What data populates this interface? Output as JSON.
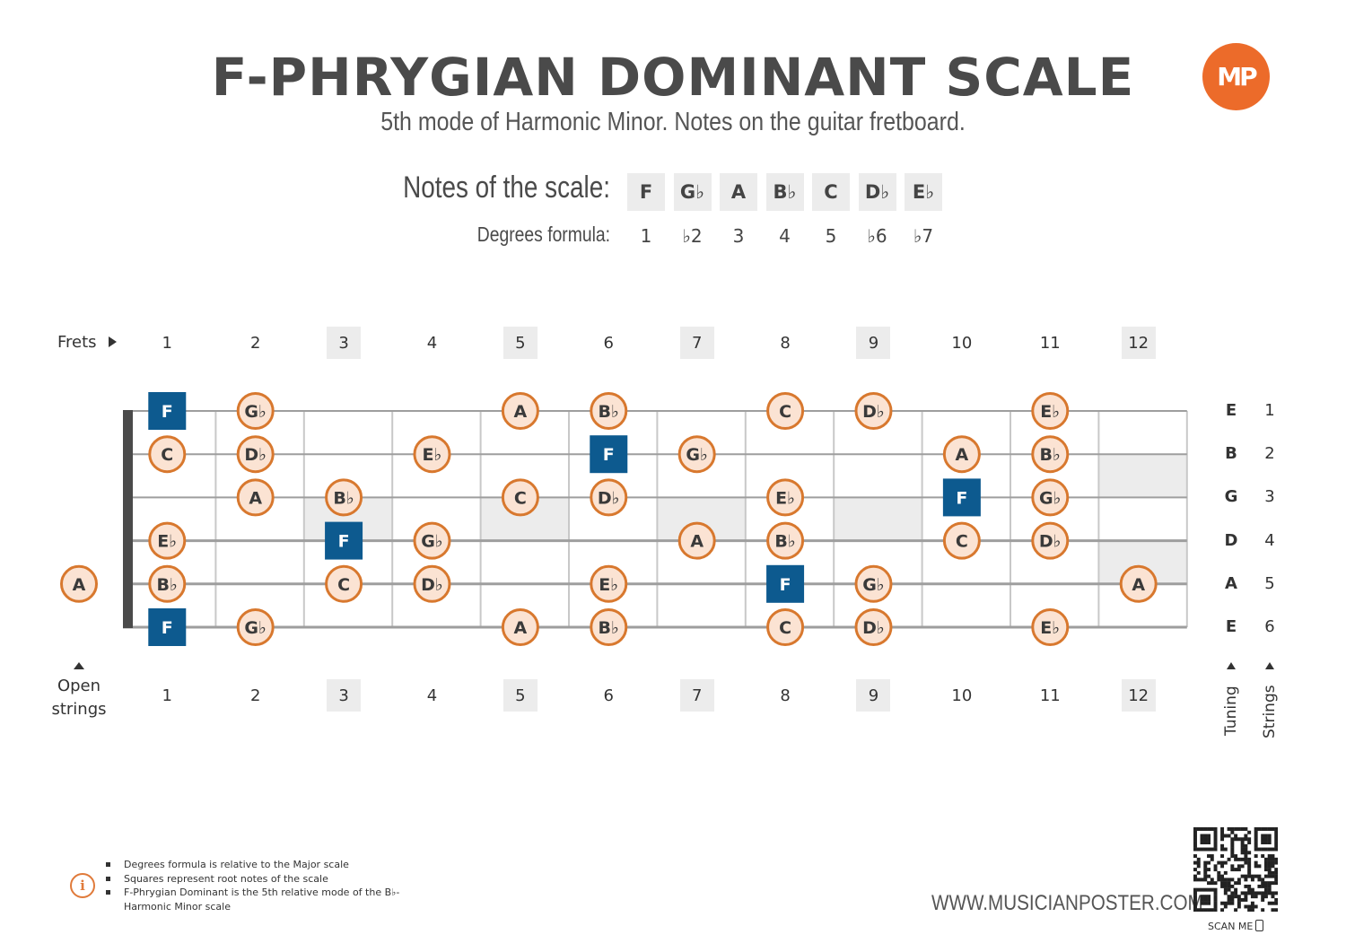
{
  "title": "F-PHRYGIAN DOMINANT SCALE",
  "subtitle": "5th mode of Harmonic Minor. Notes on the guitar fretboard.",
  "logo_text": "MP",
  "notes_label": "Notes of the scale:",
  "degrees_label": "Degrees formula:",
  "scale_notes": [
    "F",
    "G♭",
    "A",
    "B♭",
    "C",
    "D♭",
    "E♭"
  ],
  "degrees": [
    "1",
    "♭2",
    "3",
    "4",
    "5",
    "♭6",
    "♭7"
  ],
  "frets_label": "Frets",
  "open_strings_label": [
    "Open",
    "strings"
  ],
  "fret_numbers": [
    "1",
    "2",
    "3",
    "4",
    "5",
    "6",
    "7",
    "8",
    "9",
    "10",
    "11",
    "12"
  ],
  "highlighted_frets": [
    3,
    5,
    7,
    9,
    12
  ],
  "tuning": [
    "E",
    "B",
    "G",
    "D",
    "A",
    "E"
  ],
  "string_numbers": [
    "1",
    "2",
    "3",
    "4",
    "5",
    "6"
  ],
  "tuning_label": "Tuning",
  "strings_label": "Strings",
  "colors": {
    "note_fill": "#fbe3d3",
    "note_border": "#d8782e",
    "root_fill": "#0d5a8f",
    "fret_line": "#c8c8c8",
    "string_line": "#9e9e9e",
    "nut": "#4a4a4a",
    "highlight": "#ececec"
  },
  "fretboard_notes": [
    {
      "string": 1,
      "fret": 1,
      "note": "F",
      "root": true
    },
    {
      "string": 1,
      "fret": 2,
      "note": "G♭",
      "root": false
    },
    {
      "string": 1,
      "fret": 5,
      "note": "A",
      "root": false
    },
    {
      "string": 1,
      "fret": 6,
      "note": "B♭",
      "root": false
    },
    {
      "string": 1,
      "fret": 8,
      "note": "C",
      "root": false
    },
    {
      "string": 1,
      "fret": 9,
      "note": "D♭",
      "root": false
    },
    {
      "string": 1,
      "fret": 11,
      "note": "E♭",
      "root": false
    },
    {
      "string": 2,
      "fret": 1,
      "note": "C",
      "root": false
    },
    {
      "string": 2,
      "fret": 2,
      "note": "D♭",
      "root": false
    },
    {
      "string": 2,
      "fret": 4,
      "note": "E♭",
      "root": false
    },
    {
      "string": 2,
      "fret": 6,
      "note": "F",
      "root": true
    },
    {
      "string": 2,
      "fret": 7,
      "note": "G♭",
      "root": false
    },
    {
      "string": 2,
      "fret": 10,
      "note": "A",
      "root": false
    },
    {
      "string": 2,
      "fret": 11,
      "note": "B♭",
      "root": false
    },
    {
      "string": 3,
      "fret": 2,
      "note": "A",
      "root": false
    },
    {
      "string": 3,
      "fret": 3,
      "note": "B♭",
      "root": false
    },
    {
      "string": 3,
      "fret": 5,
      "note": "C",
      "root": false
    },
    {
      "string": 3,
      "fret": 6,
      "note": "D♭",
      "root": false
    },
    {
      "string": 3,
      "fret": 8,
      "note": "E♭",
      "root": false
    },
    {
      "string": 3,
      "fret": 10,
      "note": "F",
      "root": true
    },
    {
      "string": 3,
      "fret": 11,
      "note": "G♭",
      "root": false
    },
    {
      "string": 4,
      "fret": 1,
      "note": "E♭",
      "root": false
    },
    {
      "string": 4,
      "fret": 3,
      "note": "F",
      "root": true
    },
    {
      "string": 4,
      "fret": 4,
      "note": "G♭",
      "root": false
    },
    {
      "string": 4,
      "fret": 7,
      "note": "A",
      "root": false
    },
    {
      "string": 4,
      "fret": 8,
      "note": "B♭",
      "root": false
    },
    {
      "string": 4,
      "fret": 10,
      "note": "C",
      "root": false
    },
    {
      "string": 4,
      "fret": 11,
      "note": "D♭",
      "root": false
    },
    {
      "string": 5,
      "fret": 0,
      "note": "A",
      "root": false
    },
    {
      "string": 5,
      "fret": 1,
      "note": "B♭",
      "root": false
    },
    {
      "string": 5,
      "fret": 3,
      "note": "C",
      "root": false
    },
    {
      "string": 5,
      "fret": 4,
      "note": "D♭",
      "root": false
    },
    {
      "string": 5,
      "fret": 6,
      "note": "E♭",
      "root": false
    },
    {
      "string": 5,
      "fret": 8,
      "note": "F",
      "root": true
    },
    {
      "string": 5,
      "fret": 9,
      "note": "G♭",
      "root": false
    },
    {
      "string": 5,
      "fret": 12,
      "note": "A",
      "root": false
    },
    {
      "string": 6,
      "fret": 1,
      "note": "F",
      "root": true
    },
    {
      "string": 6,
      "fret": 2,
      "note": "G♭",
      "root": false
    },
    {
      "string": 6,
      "fret": 5,
      "note": "A",
      "root": false
    },
    {
      "string": 6,
      "fret": 6,
      "note": "B♭",
      "root": false
    },
    {
      "string": 6,
      "fret": 8,
      "note": "C",
      "root": false
    },
    {
      "string": 6,
      "fret": 9,
      "note": "D♭",
      "root": false
    },
    {
      "string": 6,
      "fret": 11,
      "note": "E♭",
      "root": false
    }
  ],
  "info_notes": [
    "Degrees formula is relative to the Major scale",
    "Squares represent root notes of the scale",
    "F-Phrygian Dominant is the 5th relative mode of the B♭-Harmonic Minor scale"
  ],
  "website": "WWW.MUSICIANPOSTER.COM",
  "scan_me": "SCAN ME"
}
